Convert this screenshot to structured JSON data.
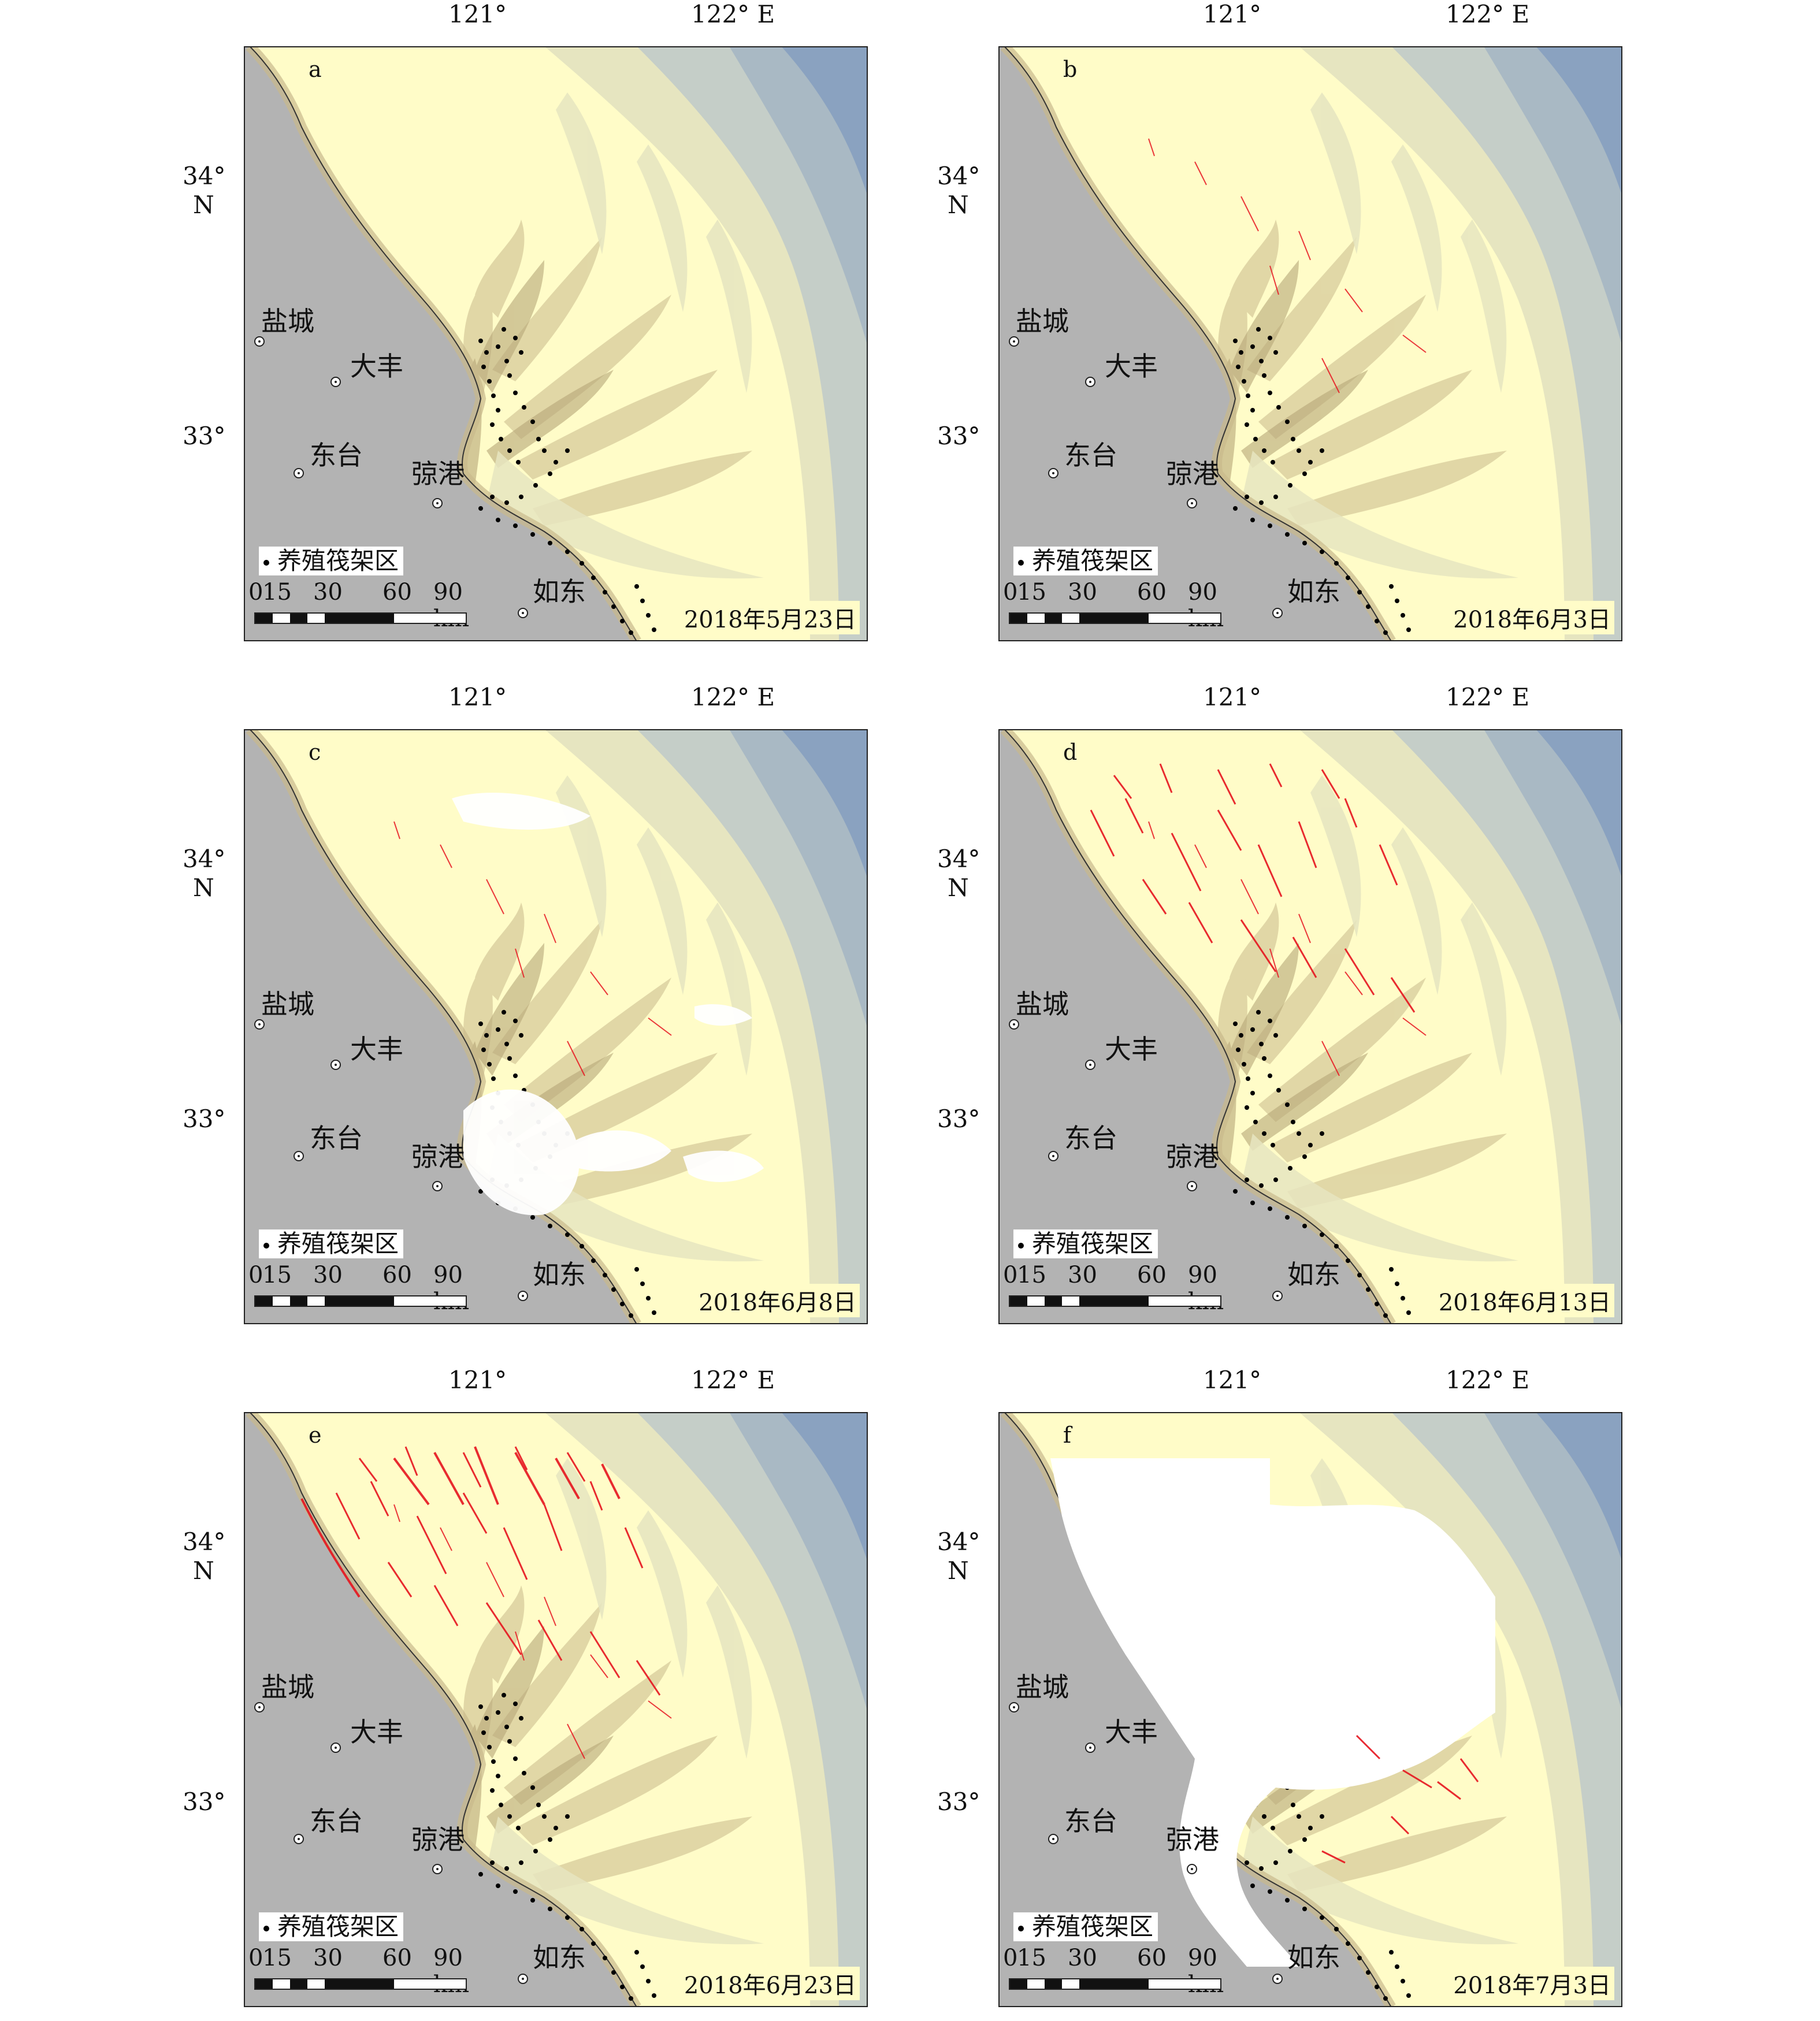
{
  "axes": {
    "lon_labels": [
      "121°",
      "122° E"
    ],
    "lat_labels": [
      "34°",
      "N",
      "33°"
    ]
  },
  "legend": {
    "raft_area": "养殖筏架区"
  },
  "scale": {
    "ticks": [
      "0",
      "15",
      "30",
      "60",
      "90 km"
    ]
  },
  "cities": {
    "yancheng": "盐城",
    "dafeng": "大丰",
    "dongtai": "东台",
    "qionggang": "弶港",
    "rudong": "如东"
  },
  "panels": [
    {
      "letter": "a",
      "date": "2018年5月23日"
    },
    {
      "letter": "b",
      "date": "2018年6月3日"
    },
    {
      "letter": "c",
      "date": "2018年6月8日"
    },
    {
      "letter": "d",
      "date": "2018年6月13日"
    },
    {
      "letter": "e",
      "date": "2018年6月23日"
    },
    {
      "letter": "f",
      "date": "2018年7月3日"
    }
  ],
  "colors": {
    "land": "#b3b3b3",
    "shallow": "#fffcc8",
    "mid_shelf": "#e6e5c0",
    "deep": "#c5cec8",
    "deepest": "#8aa2c0",
    "tidal_flat": "#c9b98c",
    "algae": "#e6141e",
    "cloud": "#ffffff"
  }
}
